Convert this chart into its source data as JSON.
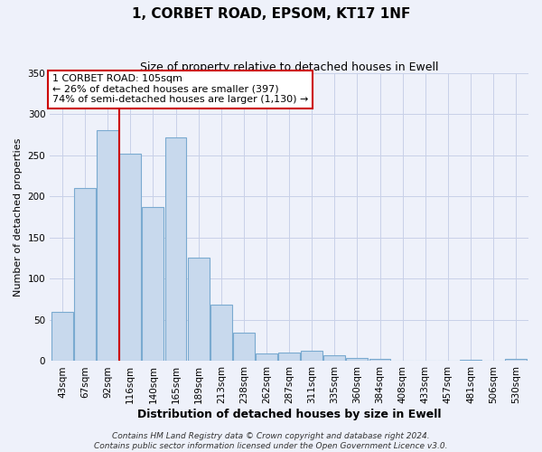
{
  "title_line1": "1, CORBET ROAD, EPSOM, KT17 1NF",
  "title_line2": "Size of property relative to detached houses in Ewell",
  "xlabel": "Distribution of detached houses by size in Ewell",
  "ylabel": "Number of detached properties",
  "bar_labels": [
    "43sqm",
    "67sqm",
    "92sqm",
    "116sqm",
    "140sqm",
    "165sqm",
    "189sqm",
    "213sqm",
    "238sqm",
    "262sqm",
    "287sqm",
    "311sqm",
    "335sqm",
    "360sqm",
    "384sqm",
    "408sqm",
    "433sqm",
    "457sqm",
    "481sqm",
    "506sqm",
    "530sqm"
  ],
  "bar_values": [
    60,
    210,
    280,
    252,
    187,
    272,
    126,
    69,
    34,
    9,
    10,
    13,
    7,
    4,
    3,
    1,
    0,
    1,
    2,
    0,
    3
  ],
  "bar_color": "#c8d9ed",
  "bar_edge_color": "#7aaad0",
  "ylim": [
    0,
    350
  ],
  "yticks": [
    0,
    50,
    100,
    150,
    200,
    250,
    300,
    350
  ],
  "vline_x": 2.5,
  "vline_color": "#cc0000",
  "annotation_title": "1 CORBET ROAD: 105sqm",
  "annotation_line1": "← 26% of detached houses are smaller (397)",
  "annotation_line2": "74% of semi-detached houses are larger (1,130) →",
  "annotation_box_color": "#ffffff",
  "annotation_box_edge": "#cc0000",
  "footer_line1": "Contains HM Land Registry data © Crown copyright and database right 2024.",
  "footer_line2": "Contains public sector information licensed under the Open Government Licence v3.0.",
  "background_color": "#eef1fa",
  "grid_color": "#c8d0e8",
  "title1_fontsize": 11,
  "title2_fontsize": 9,
  "xlabel_fontsize": 9,
  "ylabel_fontsize": 8,
  "tick_fontsize": 7.5,
  "ann_fontsize": 8,
  "footer_fontsize": 6.5
}
